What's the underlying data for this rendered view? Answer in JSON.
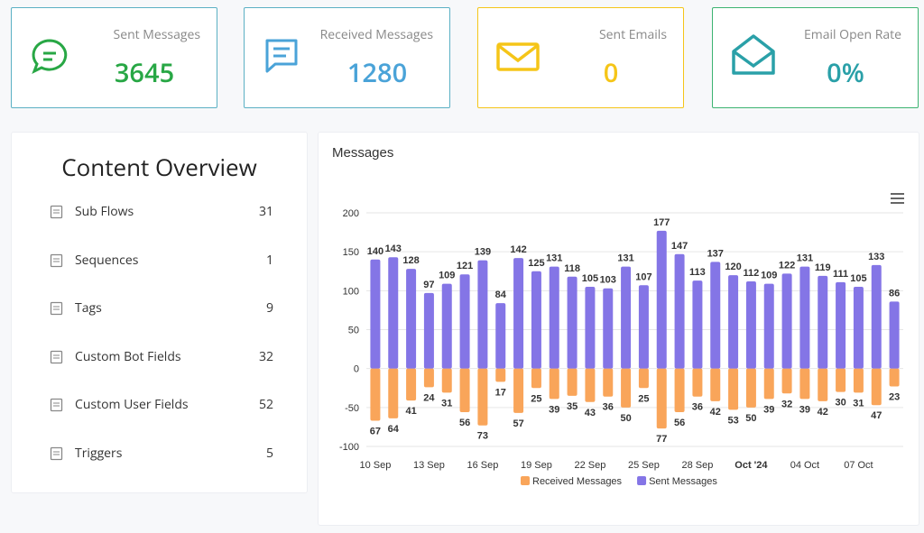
{
  "cards": [
    {
      "label": "Sent Messages",
      "value": "3645"
    },
    {
      "label": "Received Messages",
      "value": "1280"
    },
    {
      "label": "Sent Emails",
      "value": "0"
    },
    {
      "label": "Email Open Rate",
      "value": "0%"
    }
  ],
  "overview": {
    "title": "Content Overview",
    "items": [
      {
        "label": "Sub Flows",
        "count": "31"
      },
      {
        "label": "Sequences",
        "count": "1"
      },
      {
        "label": "Tags",
        "count": "9"
      },
      {
        "label": "Custom Bot Fields",
        "count": "32"
      },
      {
        "label": "Custom User Fields",
        "count": "52"
      },
      {
        "label": "Triggers",
        "count": "5"
      }
    ]
  },
  "chart_data": {
    "type": "bar",
    "title": "Messages",
    "categories": [
      "10 Sep",
      null,
      null,
      "13 Sep",
      null,
      null,
      "16 Sep",
      null,
      null,
      "19 Sep",
      null,
      null,
      "22 Sep",
      null,
      null,
      "25 Sep",
      null,
      null,
      "28 Sep",
      null,
      null,
      "Oct '24",
      null,
      null,
      "04 Oct",
      null,
      null,
      "07 Oct",
      null,
      null
    ],
    "series": [
      {
        "name": "Received Messages",
        "color": "#f9a55a",
        "values": [
          -67,
          -64,
          -41,
          -24,
          -31,
          -56,
          -73,
          -17,
          -57,
          -25,
          -39,
          -35,
          -43,
          -36,
          -50,
          -25,
          -77,
          -56,
          -36,
          -42,
          -53,
          -50,
          -39,
          -32,
          -39,
          -42,
          -30,
          -31,
          -47,
          -23
        ],
        "value_labels": [
          "67",
          "64",
          "41",
          "24",
          "31",
          "56",
          "73",
          "17",
          "57",
          "25",
          "39",
          "35",
          "43",
          "36",
          "50",
          "25",
          "77",
          "56",
          "36",
          "42",
          "53",
          "50",
          "39",
          "32",
          "39",
          "42",
          "30",
          "31",
          "47",
          "23"
        ]
      },
      {
        "name": "Sent Messages",
        "color": "#8475e6",
        "values": [
          140,
          143,
          128,
          97,
          109,
          121,
          139,
          84,
          142,
          125,
          131,
          118,
          105,
          103,
          131,
          107,
          177,
          147,
          113,
          137,
          120,
          112,
          109,
          122,
          131,
          119,
          111,
          105,
          133,
          86
        ]
      }
    ],
    "ylim": [
      -100,
      200
    ],
    "yticks": [
      -100,
      -50,
      0,
      50,
      100,
      150,
      200
    ],
    "grid": true,
    "legend": "bottom"
  }
}
